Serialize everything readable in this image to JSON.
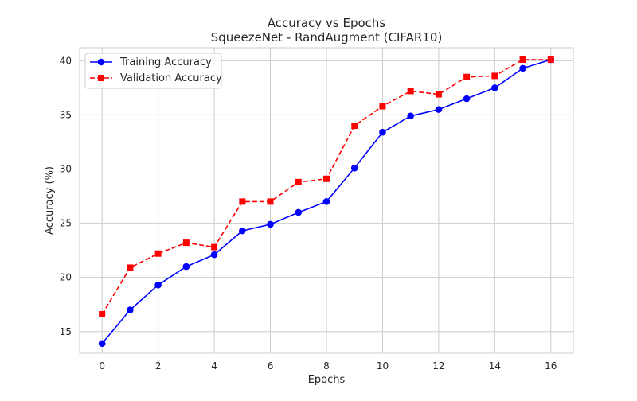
{
  "chart_data": {
    "type": "line",
    "title": "Accuracy vs Epochs",
    "subtitle": "SqueezeNet - RandAugment (CIFAR10)",
    "xlabel": "Epochs",
    "ylabel": "Accuracy (%)",
    "xlim": [
      -0.8,
      16.8
    ],
    "ylim": [
      13.0,
      41.2
    ],
    "xticks": [
      0,
      2,
      4,
      6,
      8,
      10,
      12,
      14,
      16
    ],
    "yticks": [
      15,
      20,
      25,
      30,
      35,
      40
    ],
    "grid": true,
    "legend_position": "top-left",
    "x": [
      0,
      1,
      2,
      3,
      4,
      5,
      6,
      7,
      8,
      9,
      10,
      11,
      12,
      13,
      14,
      15,
      16
    ],
    "series": [
      {
        "name": "Training Accuracy",
        "color": "#0000ff",
        "marker": "circle",
        "line_style": "solid",
        "values": [
          13.9,
          17.0,
          19.3,
          21.0,
          22.1,
          24.3,
          24.9,
          26.0,
          27.0,
          30.1,
          33.4,
          34.9,
          35.5,
          36.5,
          37.5,
          39.3,
          40.1
        ]
      },
      {
        "name": "Validation Accuracy",
        "color": "#ff0000",
        "marker": "square",
        "line_style": "dashed",
        "values": [
          16.6,
          20.9,
          22.2,
          23.2,
          22.8,
          27.0,
          27.0,
          28.8,
          29.1,
          34.0,
          35.8,
          37.2,
          36.9,
          38.5,
          38.6,
          40.1,
          40.1
        ]
      }
    ]
  }
}
